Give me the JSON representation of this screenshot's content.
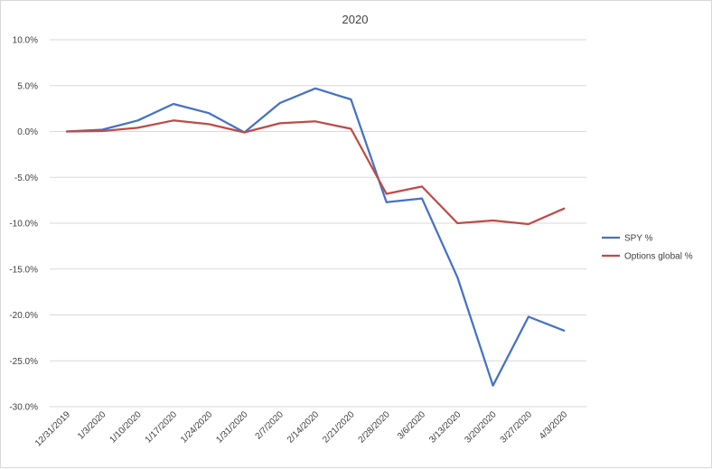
{
  "chart_data": {
    "type": "line",
    "title": "2020",
    "xlabel": "",
    "ylabel": "",
    "categories": [
      "12/31/2019",
      "1/3/2020",
      "1/10/2020",
      "1/17/2020",
      "1/24/2020",
      "1/31/2020",
      "2/7/2020",
      "2/14/2020",
      "2/21/2020",
      "2/28/2020",
      "3/6/2020",
      "3/13/2020",
      "3/20/2020",
      "3/27/2020",
      "4/3/2020"
    ],
    "ylim": [
      -30,
      10
    ],
    "ytick_step": 5,
    "ytick_labels": [
      "10.0%",
      "5.0%",
      "0.0%",
      "-5.0%",
      "-10.0%",
      "-15.0%",
      "-20.0%",
      "-25.0%",
      "-30.0%"
    ],
    "grid": true,
    "legend_position": "right",
    "series": [
      {
        "name": "SPY %",
        "color": "#4472c4",
        "values": [
          0.0,
          0.2,
          1.2,
          3.0,
          2.0,
          -0.1,
          3.1,
          4.7,
          3.5,
          -7.7,
          -7.3,
          -15.9,
          -27.7,
          -20.2,
          -21.7
        ]
      },
      {
        "name": "Options global %",
        "color": "#be4b48",
        "values": [
          0.0,
          0.05,
          0.4,
          1.2,
          0.8,
          -0.1,
          0.9,
          1.1,
          0.3,
          -6.8,
          -6.0,
          -10.0,
          -9.7,
          -10.1,
          -8.4
        ]
      }
    ]
  }
}
